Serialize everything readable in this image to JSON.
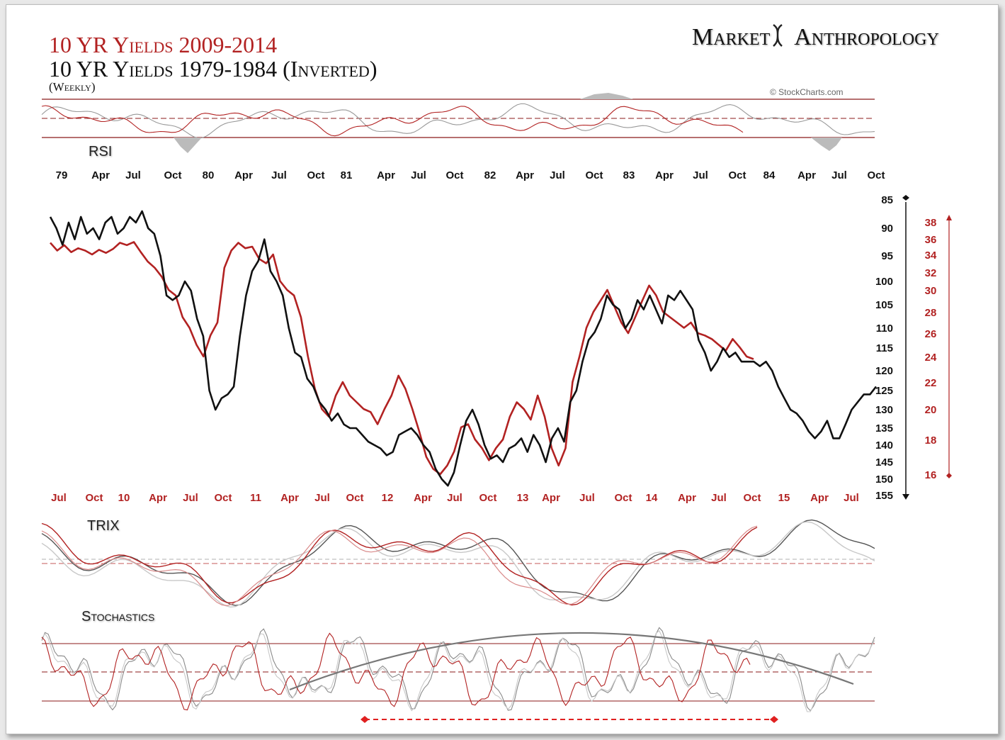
{
  "titles": {
    "line1": "10 YR Yields 2009-2014",
    "line2": "10 YR Yields 1979-1984 (Inverted)",
    "line3": "(Weekly)"
  },
  "brand": {
    "left": "Market",
    "right": "Anthropology"
  },
  "credit": "© StockCharts.com",
  "panels": {
    "rsi": "RSI",
    "trix": "TRIX",
    "stochastics": "Stochastics"
  },
  "colors": {
    "red": "#b22222",
    "black": "#111111",
    "gray": "#999999",
    "lightgray": "#c8c8c8",
    "band": "#8b1a1a"
  },
  "chart_data": {
    "type": "line",
    "title": "10 YR Yields 2009-2014 vs 10 YR Yields 1979-1984 (Inverted), Weekly",
    "top_axis": {
      "labels": [
        "79",
        "Apr",
        "Jul",
        "Oct",
        "80",
        "Apr",
        "Jul",
        "Oct",
        "81",
        "Apr",
        "Jul",
        "Oct",
        "82",
        "Apr",
        "Jul",
        "Oct",
        "83",
        "Apr",
        "Jul",
        "Oct",
        "84",
        "Apr",
        "Jul",
        "Oct"
      ]
    },
    "bottom_axis": {
      "labels": [
        "Jul",
        "Oct",
        "10",
        "Apr",
        "Jul",
        "Oct",
        "11",
        "Apr",
        "Jul",
        "Oct",
        "12",
        "Apr",
        "Jul",
        "Oct",
        "13",
        "Apr",
        "Jul",
        "Oct",
        "14",
        "Apr",
        "Jul",
        "Oct",
        "15",
        "Apr",
        "Jul"
      ]
    },
    "left_scale": {
      "series": "10 YR Yields 1979-1984 (Inverted)",
      "ticks": [
        85,
        90,
        95,
        100,
        105,
        110,
        115,
        120,
        125,
        130,
        135,
        140,
        145,
        150,
        155
      ],
      "range": [
        85,
        155
      ]
    },
    "right_scale": {
      "series": "10 YR Yields 2009-2014",
      "ticks": [
        38,
        36,
        34,
        32,
        30,
        28,
        26,
        24,
        22,
        20,
        18,
        16
      ]
    },
    "series": [
      {
        "name": "10 YR Yields 1979-1984 (Inverted)",
        "color": "black",
        "values": [
          88,
          90,
          93,
          89,
          92,
          88,
          91,
          90,
          92,
          89,
          88,
          91,
          90,
          88,
          89,
          87,
          90,
          91,
          95,
          103,
          104,
          103,
          100,
          102,
          108,
          112,
          125,
          130,
          127,
          126,
          124,
          112,
          103,
          98,
          96,
          92,
          98,
          100,
          103,
          110,
          116,
          117,
          122,
          124,
          128,
          130,
          133,
          131,
          134,
          135,
          135,
          137,
          139,
          140,
          141,
          143,
          142,
          137,
          136,
          135,
          137,
          140,
          142,
          147,
          150,
          152,
          148,
          140,
          133,
          130,
          134,
          140,
          144,
          143,
          145,
          141,
          140,
          138,
          142,
          137,
          140,
          145,
          138,
          135,
          139,
          128,
          125,
          118,
          113,
          111,
          108,
          103,
          105,
          106,
          110,
          108,
          104,
          106,
          103,
          106,
          109,
          103,
          104,
          102,
          104,
          106,
          113,
          116,
          120,
          118,
          115,
          117,
          116,
          118,
          118,
          118,
          119,
          118,
          120,
          124,
          127,
          130,
          131,
          133,
          136,
          138,
          136,
          133,
          138,
          138,
          134,
          130,
          128,
          126,
          126,
          124
        ]
      },
      {
        "name": "10 YR Yields 2009-2014",
        "color": "red",
        "values": [
          35.5,
          34.5,
          35.2,
          34.3,
          34.8,
          34.5,
          34.0,
          34.6,
          34.2,
          34.7,
          35.5,
          35.2,
          35.6,
          34.3,
          33.2,
          32.5,
          31.5,
          30.0,
          29.5,
          27.5,
          26.5,
          25.0,
          24.0,
          25.8,
          27.0,
          32.5,
          34.5,
          35.5,
          34.8,
          35.0,
          33.5,
          33.0,
          34.0,
          31.0,
          30.0,
          29.5,
          27.5,
          24.0,
          21.5,
          20.0,
          19.5,
          21.0,
          22.0,
          21.0,
          20.5,
          20.0,
          19.8,
          19.0,
          20.0,
          21.0,
          22.5,
          21.5,
          20.0,
          18.5,
          17.0,
          16.3,
          15.5,
          16.5,
          17.3,
          18.8,
          19.0,
          18.0,
          17.5,
          16.8,
          17.5,
          18.0,
          19.5,
          20.5,
          20.0,
          19.3,
          21.0,
          19.5,
          17.5,
          16.5,
          17.5,
          22.0,
          24.0,
          26.5,
          28.0,
          29.0,
          30.0,
          28.5,
          27.0,
          26.0,
          27.5,
          29.0,
          30.5,
          29.5,
          28.0,
          27.5,
          27.0,
          26.5,
          27.0,
          26.0,
          25.8,
          25.5,
          25.0,
          24.5,
          25.5,
          24.8,
          24.0,
          23.8
        ]
      }
    ],
    "annotations": [
      "RSI panel with upper/lower bands",
      "TRIX panel",
      "Stochastics panel with arc trendline and red dashed bracket"
    ]
  }
}
